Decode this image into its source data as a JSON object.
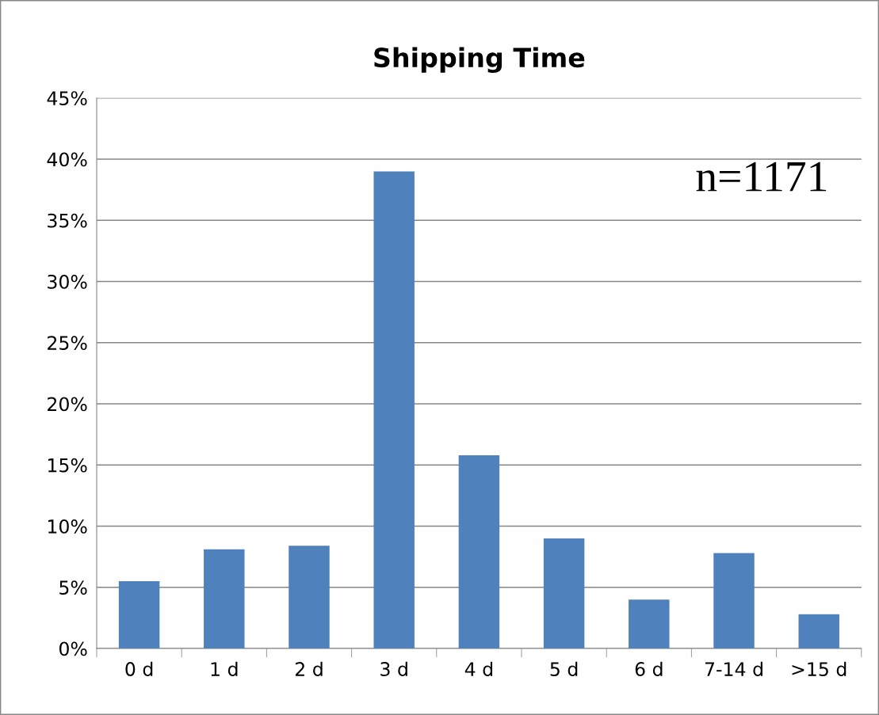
{
  "chart_data": {
    "type": "bar",
    "title": "Shipping Time",
    "categories": [
      "0 d",
      "1 d",
      "2 d",
      "3 d",
      "4 d",
      "5 d",
      "6 d",
      "7-14 d",
      ">15 d"
    ],
    "values": [
      5.5,
      8.1,
      8.4,
      39.0,
      15.8,
      9.0,
      4.0,
      7.8,
      2.8
    ],
    "color": "#4f81bd",
    "ylim": [
      0,
      45
    ],
    "yticks": [
      {
        "value": 0,
        "label": "0%"
      },
      {
        "value": 5,
        "label": "5%"
      },
      {
        "value": 10,
        "label": "10%"
      },
      {
        "value": 15,
        "label": "15%"
      },
      {
        "value": 20,
        "label": "20%"
      },
      {
        "value": 25,
        "label": "25%"
      },
      {
        "value": 30,
        "label": "30%"
      },
      {
        "value": 35,
        "label": "35%"
      },
      {
        "value": 40,
        "label": "40%"
      },
      {
        "value": 45,
        "label": "45%"
      }
    ],
    "grid": "y",
    "legend": false,
    "annotations": [
      "n=1171"
    ]
  }
}
